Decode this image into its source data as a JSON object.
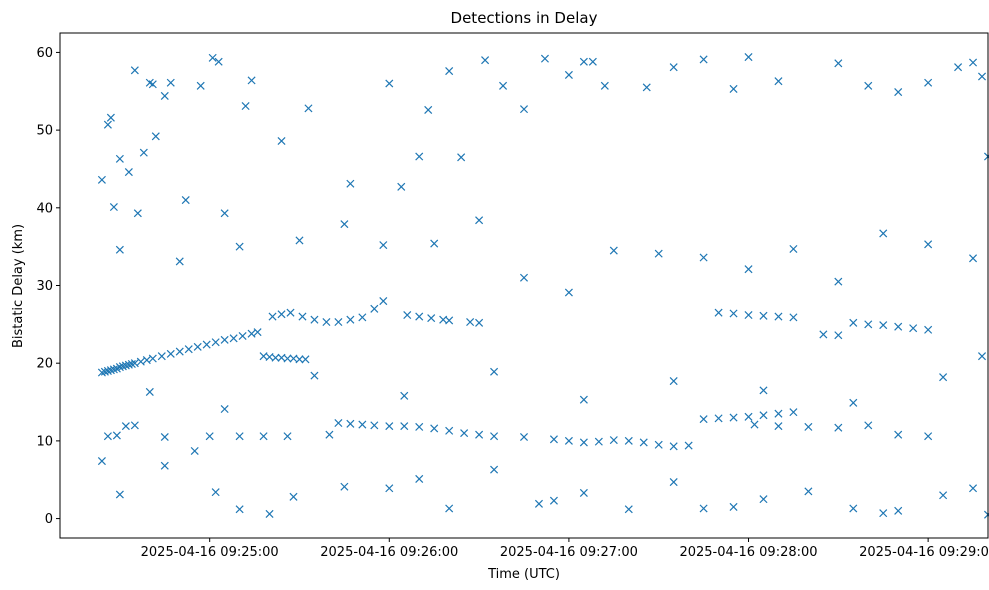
{
  "chart_data": {
    "type": "scatter",
    "title": "Detections in Delay",
    "xlabel": "Time (UTC)",
    "ylabel": "Bistatic Delay (km)",
    "x_type": "datetime",
    "xlim": [
      "2025-04-16 09:24:10",
      "2025-04-16 09:29:20"
    ],
    "ylim": [
      -2.5,
      62.5
    ],
    "x_ticks": [
      "2025-04-16 09:25:00",
      "2025-04-16 09:26:00",
      "2025-04-16 09:27:00",
      "2025-04-16 09:28:00",
      "2025-04-16 09:29:00"
    ],
    "y_ticks": [
      0,
      10,
      20,
      30,
      40,
      50,
      60
    ],
    "marker": "x",
    "color": "#1f77b4",
    "grid": false,
    "legend": "none",
    "series": [
      {
        "values": [
          [
            "2025-04-16 09:24:24",
            18.8
          ],
          [
            "2025-04-16 09:24:25",
            18.9
          ],
          [
            "2025-04-16 09:24:26",
            19.0
          ],
          [
            "2025-04-16 09:24:27",
            19.1
          ],
          [
            "2025-04-16 09:24:28",
            19.2
          ],
          [
            "2025-04-16 09:24:29",
            19.3
          ],
          [
            "2025-04-16 09:24:30",
            19.5
          ],
          [
            "2025-04-16 09:24:31",
            19.6
          ],
          [
            "2025-04-16 09:24:32",
            19.7
          ],
          [
            "2025-04-16 09:24:33",
            19.8
          ],
          [
            "2025-04-16 09:24:34",
            19.9
          ],
          [
            "2025-04-16 09:24:35",
            20.0
          ],
          [
            "2025-04-16 09:24:37",
            20.2
          ],
          [
            "2025-04-16 09:24:39",
            20.4
          ],
          [
            "2025-04-16 09:24:41",
            20.6
          ],
          [
            "2025-04-16 09:24:44",
            20.9
          ],
          [
            "2025-04-16 09:24:47",
            21.2
          ],
          [
            "2025-04-16 09:24:50",
            21.5
          ],
          [
            "2025-04-16 09:24:53",
            21.8
          ],
          [
            "2025-04-16 09:24:56",
            22.1
          ],
          [
            "2025-04-16 09:24:59",
            22.4
          ],
          [
            "2025-04-16 09:25:02",
            22.7
          ],
          [
            "2025-04-16 09:25:05",
            23.0
          ],
          [
            "2025-04-16 09:25:08",
            23.2
          ],
          [
            "2025-04-16 09:25:11",
            23.5
          ],
          [
            "2025-04-16 09:25:14",
            23.8
          ],
          [
            "2025-04-16 09:25:16",
            24.0
          ],
          [
            "2025-04-16 09:25:18",
            20.9
          ],
          [
            "2025-04-16 09:25:20",
            20.8
          ],
          [
            "2025-04-16 09:25:22",
            20.7
          ],
          [
            "2025-04-16 09:25:24",
            20.7
          ],
          [
            "2025-04-16 09:25:26",
            20.6
          ],
          [
            "2025-04-16 09:25:28",
            20.6
          ],
          [
            "2025-04-16 09:25:30",
            20.5
          ],
          [
            "2025-04-16 09:25:32",
            20.5
          ],
          [
            "2025-04-16 09:25:21",
            26.0
          ],
          [
            "2025-04-16 09:25:24",
            26.3
          ],
          [
            "2025-04-16 09:25:27",
            26.5
          ],
          [
            "2025-04-16 09:25:31",
            26.0
          ],
          [
            "2025-04-16 09:25:35",
            25.6
          ],
          [
            "2025-04-16 09:25:39",
            25.3
          ],
          [
            "2025-04-16 09:25:43",
            25.3
          ],
          [
            "2025-04-16 09:25:47",
            25.6
          ],
          [
            "2025-04-16 09:25:51",
            25.9
          ],
          [
            "2025-04-16 09:25:55",
            27.0
          ],
          [
            "2025-04-16 09:25:58",
            28.0
          ],
          [
            "2025-04-16 09:26:06",
            26.2
          ],
          [
            "2025-04-16 09:26:10",
            26.0
          ],
          [
            "2025-04-16 09:26:14",
            25.8
          ],
          [
            "2025-04-16 09:26:18",
            25.6
          ],
          [
            "2025-04-16 09:26:20",
            25.5
          ],
          [
            "2025-04-16 09:26:27",
            25.3
          ],
          [
            "2025-04-16 09:26:30",
            25.2
          ],
          [
            "2025-04-16 09:24:26",
            10.6
          ],
          [
            "2025-04-16 09:24:29",
            10.7
          ],
          [
            "2025-04-16 09:24:32",
            11.9
          ],
          [
            "2025-04-16 09:24:35",
            12.0
          ],
          [
            "2025-04-16 09:24:45",
            10.5
          ],
          [
            "2025-04-16 09:25:00",
            10.6
          ],
          [
            "2025-04-16 09:25:10",
            10.6
          ],
          [
            "2025-04-16 09:25:18",
            10.6
          ],
          [
            "2025-04-16 09:25:26",
            10.6
          ],
          [
            "2025-04-16 09:25:40",
            10.8
          ],
          [
            "2025-04-16 09:25:43",
            12.3
          ],
          [
            "2025-04-16 09:25:47",
            12.2
          ],
          [
            "2025-04-16 09:25:51",
            12.1
          ],
          [
            "2025-04-16 09:25:55",
            12.0
          ],
          [
            "2025-04-16 09:26:00",
            11.9
          ],
          [
            "2025-04-16 09:26:05",
            11.9
          ],
          [
            "2025-04-16 09:26:10",
            11.8
          ],
          [
            "2025-04-16 09:26:15",
            11.6
          ],
          [
            "2025-04-16 09:26:20",
            11.3
          ],
          [
            "2025-04-16 09:26:25",
            11.0
          ],
          [
            "2025-04-16 09:26:30",
            10.8
          ],
          [
            "2025-04-16 09:26:35",
            10.6
          ],
          [
            "2025-04-16 09:26:45",
            10.5
          ],
          [
            "2025-04-16 09:26:55",
            10.2
          ],
          [
            "2025-04-16 09:27:00",
            10.0
          ],
          [
            "2025-04-16 09:27:05",
            9.8
          ],
          [
            "2025-04-16 09:27:10",
            9.9
          ],
          [
            "2025-04-16 09:27:15",
            10.1
          ],
          [
            "2025-04-16 09:27:20",
            10.0
          ],
          [
            "2025-04-16 09:27:25",
            9.8
          ],
          [
            "2025-04-16 09:27:30",
            9.5
          ],
          [
            "2025-04-16 09:27:35",
            9.3
          ],
          [
            "2025-04-16 09:27:40",
            9.4
          ],
          [
            "2025-04-16 09:27:45",
            12.8
          ],
          [
            "2025-04-16 09:27:50",
            12.9
          ],
          [
            "2025-04-16 09:27:55",
            13.0
          ],
          [
            "2025-04-16 09:28:00",
            13.1
          ],
          [
            "2025-04-16 09:28:05",
            13.3
          ],
          [
            "2025-04-16 09:28:10",
            13.5
          ],
          [
            "2025-04-16 09:28:15",
            13.7
          ],
          [
            "2025-04-16 09:28:02",
            12.1
          ],
          [
            "2025-04-16 09:28:10",
            11.9
          ],
          [
            "2025-04-16 09:28:20",
            11.8
          ],
          [
            "2025-04-16 09:28:30",
            11.7
          ],
          [
            "2025-04-16 09:28:40",
            12.0
          ],
          [
            "2025-04-16 09:28:50",
            10.8
          ],
          [
            "2025-04-16 09:29:00",
            10.6
          ],
          [
            "2025-04-16 09:27:50",
            26.5
          ],
          [
            "2025-04-16 09:27:55",
            26.4
          ],
          [
            "2025-04-16 09:28:00",
            26.2
          ],
          [
            "2025-04-16 09:28:05",
            26.1
          ],
          [
            "2025-04-16 09:28:10",
            26.0
          ],
          [
            "2025-04-16 09:28:15",
            25.9
          ],
          [
            "2025-04-16 09:28:25",
            23.7
          ],
          [
            "2025-04-16 09:28:30",
            23.6
          ],
          [
            "2025-04-16 09:28:35",
            25.2
          ],
          [
            "2025-04-16 09:28:40",
            25.0
          ],
          [
            "2025-04-16 09:28:45",
            24.9
          ],
          [
            "2025-04-16 09:28:50",
            24.7
          ],
          [
            "2025-04-16 09:28:55",
            24.5
          ],
          [
            "2025-04-16 09:29:00",
            24.3
          ],
          [
            "2025-04-16 09:24:24",
            43.6
          ],
          [
            "2025-04-16 09:24:26",
            50.7
          ],
          [
            "2025-04-16 09:24:27",
            51.6
          ],
          [
            "2025-04-16 09:24:28",
            40.1
          ],
          [
            "2025-04-16 09:24:30",
            46.3
          ],
          [
            "2025-04-16 09:24:33",
            44.6
          ],
          [
            "2025-04-16 09:24:35",
            57.7
          ],
          [
            "2025-04-16 09:24:38",
            47.1
          ],
          [
            "2025-04-16 09:24:40",
            56.1
          ],
          [
            "2025-04-16 09:24:41",
            55.9
          ],
          [
            "2025-04-16 09:24:42",
            49.2
          ],
          [
            "2025-04-16 09:24:45",
            54.4
          ],
          [
            "2025-04-16 09:24:47",
            56.1
          ],
          [
            "2025-04-16 09:24:52",
            41.0
          ],
          [
            "2025-04-16 09:24:57",
            55.7
          ],
          [
            "2025-04-16 09:25:01",
            59.3
          ],
          [
            "2025-04-16 09:25:03",
            58.8
          ],
          [
            "2025-04-16 09:25:12",
            53.1
          ],
          [
            "2025-04-16 09:25:14",
            56.4
          ],
          [
            "2025-04-16 09:25:24",
            48.6
          ],
          [
            "2025-04-16 09:25:33",
            52.8
          ],
          [
            "2025-04-16 09:25:47",
            43.1
          ],
          [
            "2025-04-16 09:26:00",
            56.0
          ],
          [
            "2025-04-16 09:26:04",
            42.7
          ],
          [
            "2025-04-16 09:26:10",
            46.6
          ],
          [
            "2025-04-16 09:26:13",
            52.6
          ],
          [
            "2025-04-16 09:26:20",
            57.6
          ],
          [
            "2025-04-16 09:26:24",
            46.5
          ],
          [
            "2025-04-16 09:26:32",
            59.0
          ],
          [
            "2025-04-16 09:26:38",
            55.7
          ],
          [
            "2025-04-16 09:26:45",
            52.7
          ],
          [
            "2025-04-16 09:26:52",
            59.2
          ],
          [
            "2025-04-16 09:27:00",
            57.1
          ],
          [
            "2025-04-16 09:27:05",
            58.8
          ],
          [
            "2025-04-16 09:27:08",
            58.8
          ],
          [
            "2025-04-16 09:27:12",
            55.7
          ],
          [
            "2025-04-16 09:27:26",
            55.5
          ],
          [
            "2025-04-16 09:27:35",
            58.1
          ],
          [
            "2025-04-16 09:27:45",
            59.1
          ],
          [
            "2025-04-16 09:27:55",
            55.3
          ],
          [
            "2025-04-16 09:28:00",
            59.4
          ],
          [
            "2025-04-16 09:28:10",
            56.3
          ],
          [
            "2025-04-16 09:28:30",
            58.6
          ],
          [
            "2025-04-16 09:28:40",
            55.7
          ],
          [
            "2025-04-16 09:28:50",
            54.9
          ],
          [
            "2025-04-16 09:29:00",
            56.1
          ],
          [
            "2025-04-16 09:29:10",
            58.1
          ],
          [
            "2025-04-16 09:29:15",
            58.7
          ],
          [
            "2025-04-16 09:29:18",
            56.9
          ],
          [
            "2025-04-16 09:29:20",
            46.6
          ],
          [
            "2025-04-16 09:24:24",
            7.4
          ],
          [
            "2025-04-16 09:24:30",
            3.1
          ],
          [
            "2025-04-16 09:24:45",
            6.8
          ],
          [
            "2025-04-16 09:24:55",
            8.7
          ],
          [
            "2025-04-16 09:25:02",
            3.4
          ],
          [
            "2025-04-16 09:25:10",
            1.2
          ],
          [
            "2025-04-16 09:25:20",
            0.6
          ],
          [
            "2025-04-16 09:25:28",
            2.8
          ],
          [
            "2025-04-16 09:25:45",
            4.1
          ],
          [
            "2025-04-16 09:26:00",
            3.9
          ],
          [
            "2025-04-16 09:26:10",
            5.1
          ],
          [
            "2025-04-16 09:26:20",
            1.3
          ],
          [
            "2025-04-16 09:26:35",
            6.3
          ],
          [
            "2025-04-16 09:26:50",
            1.9
          ],
          [
            "2025-04-16 09:26:55",
            2.3
          ],
          [
            "2025-04-16 09:27:05",
            3.3
          ],
          [
            "2025-04-16 09:27:20",
            1.2
          ],
          [
            "2025-04-16 09:27:35",
            4.7
          ],
          [
            "2025-04-16 09:27:45",
            1.3
          ],
          [
            "2025-04-16 09:27:55",
            1.5
          ],
          [
            "2025-04-16 09:28:05",
            2.5
          ],
          [
            "2025-04-16 09:28:20",
            3.5
          ],
          [
            "2025-04-16 09:28:35",
            1.3
          ],
          [
            "2025-04-16 09:28:45",
            0.7
          ],
          [
            "2025-04-16 09:28:50",
            1.0
          ],
          [
            "2025-04-16 09:29:05",
            3.0
          ],
          [
            "2025-04-16 09:29:15",
            3.9
          ],
          [
            "2025-04-16 09:29:20",
            0.5
          ],
          [
            "2025-04-16 09:24:30",
            34.6
          ],
          [
            "2025-04-16 09:24:36",
            39.3
          ],
          [
            "2025-04-16 09:24:50",
            33.1
          ],
          [
            "2025-04-16 09:25:05",
            39.3
          ],
          [
            "2025-04-16 09:25:10",
            35.0
          ],
          [
            "2025-04-16 09:25:30",
            35.8
          ],
          [
            "2025-04-16 09:25:45",
            37.9
          ],
          [
            "2025-04-16 09:25:58",
            35.2
          ],
          [
            "2025-04-16 09:26:15",
            35.4
          ],
          [
            "2025-04-16 09:26:30",
            38.4
          ],
          [
            "2025-04-16 09:26:45",
            31.0
          ],
          [
            "2025-04-16 09:27:00",
            29.1
          ],
          [
            "2025-04-16 09:27:15",
            34.5
          ],
          [
            "2025-04-16 09:27:30",
            34.1
          ],
          [
            "2025-04-16 09:27:45",
            33.6
          ],
          [
            "2025-04-16 09:28:00",
            32.1
          ],
          [
            "2025-04-16 09:28:15",
            34.7
          ],
          [
            "2025-04-16 09:28:30",
            30.5
          ],
          [
            "2025-04-16 09:28:45",
            36.7
          ],
          [
            "2025-04-16 09:29:00",
            35.3
          ],
          [
            "2025-04-16 09:29:15",
            33.5
          ],
          [
            "2025-04-16 09:24:40",
            16.3
          ],
          [
            "2025-04-16 09:25:05",
            14.1
          ],
          [
            "2025-04-16 09:25:35",
            18.4
          ],
          [
            "2025-04-16 09:26:05",
            15.8
          ],
          [
            "2025-04-16 09:26:35",
            18.9
          ],
          [
            "2025-04-16 09:27:05",
            15.3
          ],
          [
            "2025-04-16 09:27:35",
            17.7
          ],
          [
            "2025-04-16 09:28:05",
            16.5
          ],
          [
            "2025-04-16 09:28:35",
            14.9
          ],
          [
            "2025-04-16 09:29:05",
            18.2
          ],
          [
            "2025-04-16 09:29:18",
            20.9
          ]
        ]
      }
    ]
  }
}
